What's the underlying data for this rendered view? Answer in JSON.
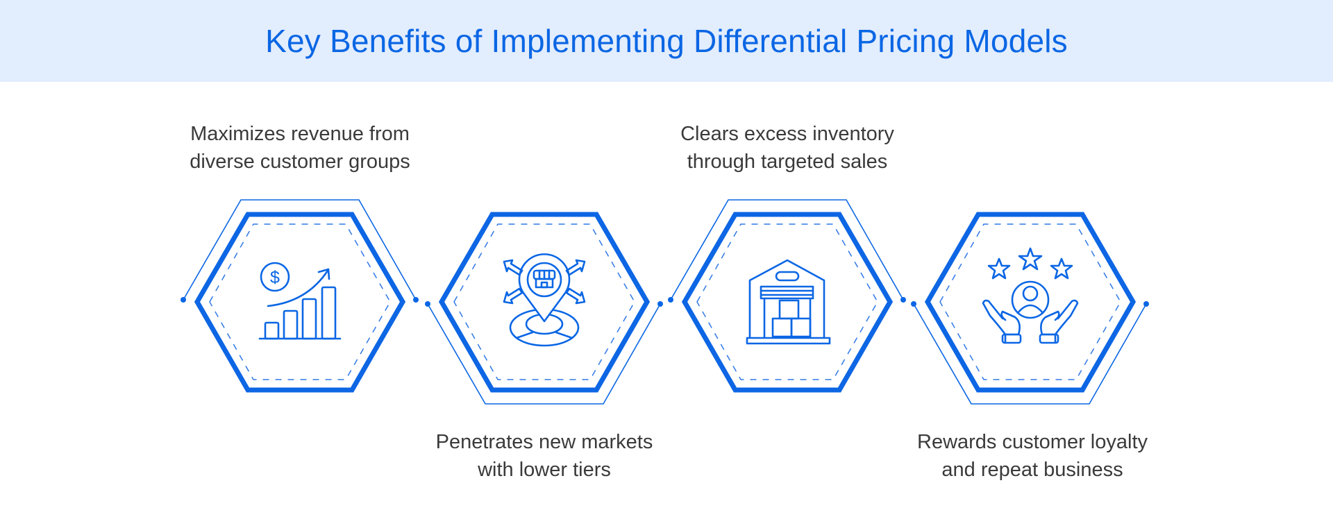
{
  "title": "Key Benefits of Implementing Differential Pricing Models",
  "accent_color": "#0a66e4",
  "benefits": [
    {
      "icon": "revenue-growth-chart-icon",
      "lines": [
        "Maximizes revenue from",
        "diverse customer groups"
      ]
    },
    {
      "icon": "market-expansion-pin-icon",
      "lines": [
        "Penetrates new markets",
        "with lower tiers"
      ]
    },
    {
      "icon": "warehouse-inventory-icon",
      "lines": [
        "Clears excess inventory",
        "through targeted sales"
      ]
    },
    {
      "icon": "customer-loyalty-hands-icon",
      "lines": [
        "Rewards customer loyalty",
        "and repeat business"
      ]
    }
  ]
}
